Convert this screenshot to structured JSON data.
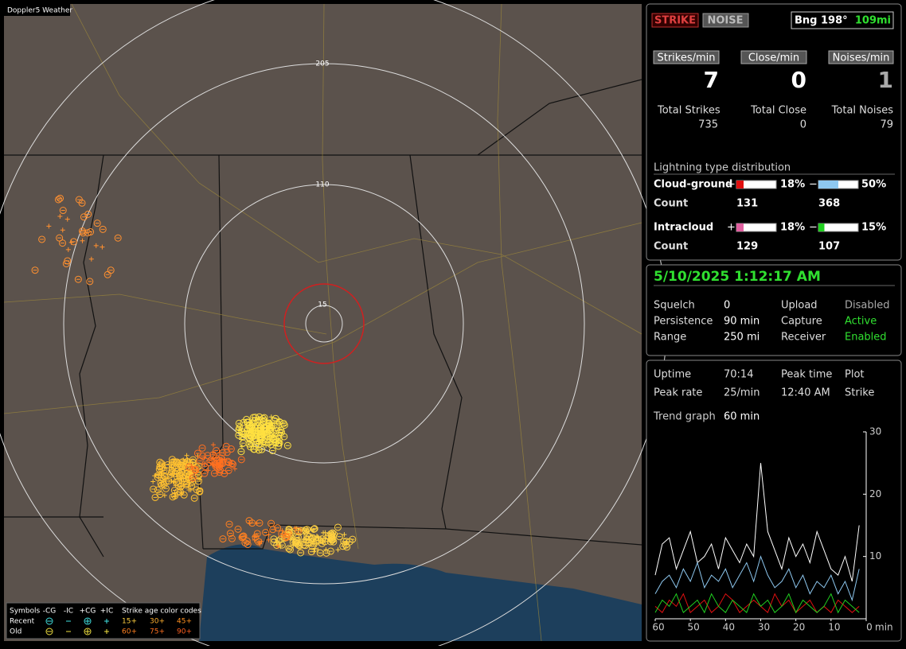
{
  "map": {
    "title": "Doppler5 Weather",
    "ring_labels": [
      "15",
      "110",
      "205"
    ],
    "legend": {
      "symbols_label": "Symbols",
      "headers": [
        "-CG",
        "-IC",
        "+CG",
        "+IC"
      ],
      "age_label": "Strike age color codes",
      "rows": [
        {
          "label": "Recent",
          "ages": [
            "15+",
            "30+",
            "45+"
          ]
        },
        {
          "label": "Old",
          "ages": [
            "60+",
            "75+",
            "90+"
          ]
        }
      ]
    }
  },
  "status": {
    "strike": "STRIKE",
    "noise": "NOISE",
    "bearing": "Bng 198°",
    "distance": "109mi"
  },
  "rates": [
    {
      "label": "Strikes/min",
      "value": 7
    },
    {
      "label": "Close/min",
      "value": 0
    },
    {
      "label": "Noises/min",
      "value": 1
    }
  ],
  "totals": [
    {
      "label": "Total Strikes",
      "value": 735
    },
    {
      "label": "Total Close",
      "value": 0
    },
    {
      "label": "Total Noises",
      "value": 79
    }
  ],
  "distribution": {
    "title": "Lightning type distribution",
    "rows": [
      {
        "label": "Cloud-ground",
        "pos_sign": "+",
        "neg_sign": "−",
        "pos_color": "#e01010",
        "neg_color": "#8ec8f0",
        "pos_pct": {
          "value": 18,
          "label": "18%"
        },
        "neg_pct": {
          "value": 50,
          "label": "50%"
        },
        "count_label": "Count",
        "pos_count": 131,
        "neg_count": 368
      },
      {
        "label": "Intracloud",
        "pos_sign": "+",
        "neg_sign": "−",
        "pos_color": "#e060a0",
        "neg_color": "#20d020",
        "pos_pct": {
          "value": 18,
          "label": "18%"
        },
        "neg_pct": {
          "value": 15,
          "label": "15%"
        },
        "count_label": "Count",
        "pos_count": 129,
        "neg_count": 107
      }
    ]
  },
  "settings": {
    "datetime": "5/10/2025 1:12:17 AM",
    "rows": [
      [
        "Squelch",
        "0",
        "Upload",
        "Disabled"
      ],
      [
        "Persistence",
        "90 min",
        "Capture",
        "Active"
      ],
      [
        "Range",
        "250 mi",
        "Receiver",
        "Enabled"
      ]
    ]
  },
  "stats": {
    "rows": [
      [
        "Uptime",
        "70:14",
        "Peak time",
        "Plot"
      ],
      [
        "Peak rate",
        "25/min",
        "12:40 AM",
        "Strike"
      ]
    ],
    "trend_label": "Trend graph",
    "trend_value": "60 min"
  },
  "chart_data": {
    "type": "line",
    "x_unit": "min",
    "xlim": [
      60,
      0
    ],
    "xticks": [
      60,
      50,
      40,
      30,
      20,
      10,
      0
    ],
    "ylim": [
      0,
      30
    ],
    "yticks": [
      10,
      20,
      30
    ],
    "x": [
      60,
      58,
      56,
      54,
      52,
      50,
      48,
      46,
      44,
      42,
      40,
      38,
      36,
      34,
      32,
      30,
      28,
      26,
      24,
      22,
      20,
      18,
      16,
      14,
      12,
      10,
      8,
      6,
      4,
      2
    ],
    "series": [
      {
        "color": "#ffffff",
        "values": [
          7,
          12,
          13,
          8,
          11,
          14,
          9,
          10,
          12,
          8,
          13,
          11,
          9,
          12,
          10,
          25,
          14,
          11,
          8,
          13,
          10,
          12,
          9,
          14,
          11,
          8,
          7,
          10,
          6,
          15
        ]
      },
      {
        "color": "#8ec8f0",
        "values": [
          4,
          6,
          7,
          5,
          8,
          6,
          9,
          5,
          7,
          6,
          8,
          5,
          7,
          9,
          6,
          10,
          7,
          5,
          6,
          8,
          5,
          7,
          4,
          6,
          5,
          7,
          4,
          6,
          3,
          8
        ]
      },
      {
        "color": "#e01010",
        "values": [
          2,
          1,
          3,
          2,
          4,
          1,
          2,
          3,
          1,
          2,
          4,
          3,
          1,
          2,
          3,
          2,
          1,
          4,
          2,
          3,
          1,
          2,
          3,
          1,
          2,
          1,
          3,
          2,
          1,
          2
        ]
      },
      {
        "color": "#20d020",
        "values": [
          1,
          3,
          2,
          4,
          1,
          2,
          3,
          1,
          4,
          2,
          1,
          3,
          2,
          1,
          4,
          2,
          3,
          1,
          2,
          4,
          1,
          3,
          2,
          1,
          2,
          4,
          1,
          3,
          2,
          1
        ]
      }
    ]
  }
}
